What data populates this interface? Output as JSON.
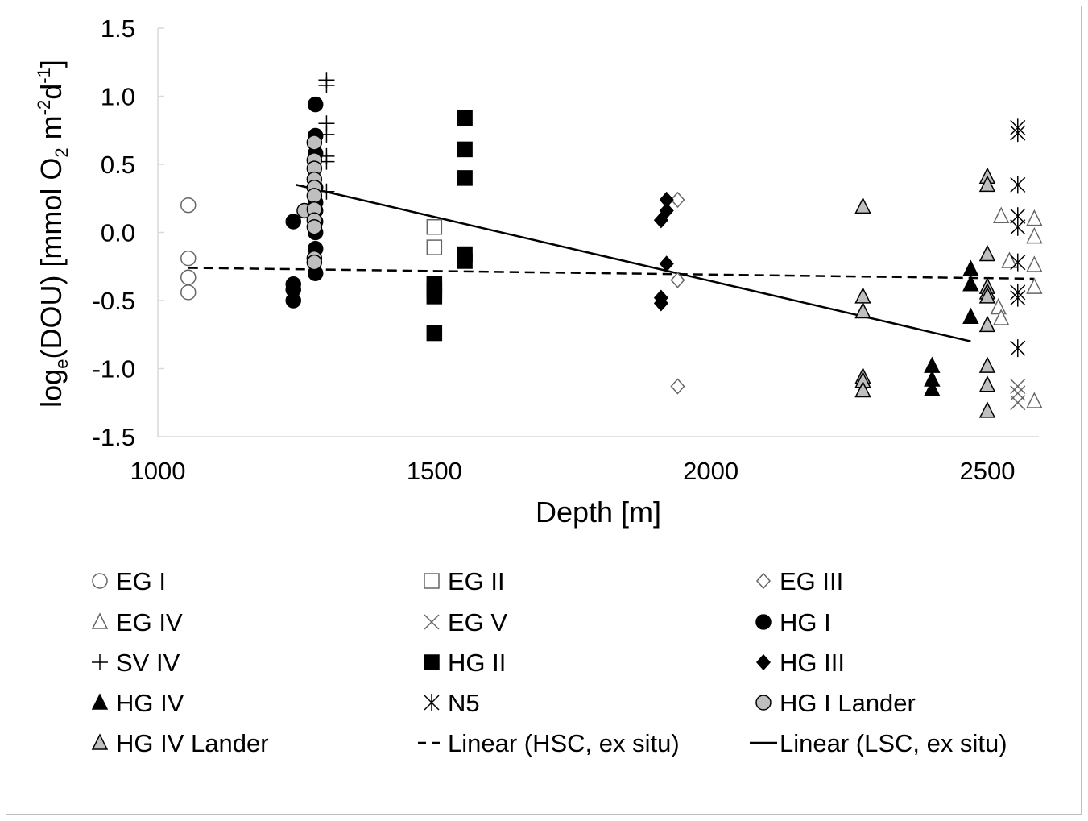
{
  "chart_data": {
    "type": "scatter",
    "title": "",
    "xlabel": "Depth [m]",
    "ylabel": {
      "prefix": "log",
      "sub1": "e",
      "mid": "(DOU) [mmol O",
      "sub2": "2",
      "mid2": " m",
      "sup1": "-2",
      "mid3": "d",
      "sup2": "-1",
      "suffix": "]"
    },
    "xlim": [
      1000,
      2600
    ],
    "ylim": [
      -1.5,
      1.5
    ],
    "xticks": [
      1000,
      1500,
      2000,
      2500
    ],
    "yticks": [
      1.5,
      1.0,
      0.5,
      0.0,
      -0.5,
      -1.0,
      -1.5
    ],
    "ytick_labels": [
      "1.5",
      "1.0",
      "0.5",
      "0.0",
      "-0.5",
      "-1.0",
      "-1.5"
    ],
    "grid": false,
    "legend_position": "bottom",
    "series": [
      {
        "name": "EG I",
        "marker": "circle",
        "fill": "#ffffff",
        "stroke": "#666666",
        "points": [
          [
            1055,
            0.2
          ],
          [
            1055,
            -0.19
          ],
          [
            1055,
            -0.33
          ],
          [
            1055,
            -0.44
          ]
        ]
      },
      {
        "name": "EG II",
        "marker": "square",
        "fill": "#ffffff",
        "stroke": "#666666",
        "points": [
          [
            1500,
            0.04
          ],
          [
            1500,
            -0.11
          ]
        ]
      },
      {
        "name": "EG III",
        "marker": "diamond",
        "fill": "#ffffff",
        "stroke": "#666666",
        "points": [
          [
            1940,
            0.24
          ],
          [
            1940,
            -0.35
          ],
          [
            1940,
            -1.13
          ]
        ]
      },
      {
        "name": "EG IV",
        "marker": "triangle",
        "fill": "#ffffff",
        "stroke": "#666666",
        "points": [
          [
            2525,
            0.12
          ],
          [
            2540,
            -0.21
          ],
          [
            2520,
            -0.55
          ],
          [
            2525,
            -0.63
          ],
          [
            2585,
            0.1
          ],
          [
            2585,
            -0.03
          ],
          [
            2585,
            -0.24
          ],
          [
            2585,
            -0.4
          ],
          [
            2585,
            -1.24
          ]
        ]
      },
      {
        "name": "EG V",
        "marker": "x",
        "fill": "none",
        "stroke": "#666666",
        "points": [
          [
            2555,
            -1.13
          ],
          [
            2555,
            -1.18
          ],
          [
            2555,
            -1.25
          ]
        ]
      },
      {
        "name": "HG I",
        "marker": "circle",
        "fill": "#000000",
        "stroke": "#000000",
        "points": [
          [
            1245,
            0.08
          ],
          [
            1245,
            -0.38
          ],
          [
            1245,
            -0.42
          ],
          [
            1245,
            -0.5
          ],
          [
            1285,
            0.94
          ],
          [
            1285,
            0.71
          ],
          [
            1285,
            0.58
          ],
          [
            1285,
            0.33
          ],
          [
            1285,
            0.22
          ],
          [
            1285,
            0.16
          ],
          [
            1285,
            0.08
          ],
          [
            1285,
            0.0
          ],
          [
            1285,
            -0.12
          ],
          [
            1285,
            -0.3
          ]
        ]
      },
      {
        "name": "SV IV",
        "marker": "plus",
        "fill": "none",
        "stroke": "#000000",
        "points": [
          [
            1305,
            1.12
          ],
          [
            1305,
            1.08
          ],
          [
            1305,
            0.8
          ],
          [
            1305,
            0.72
          ],
          [
            1305,
            0.56
          ],
          [
            1305,
            0.52
          ],
          [
            1305,
            0.3
          ]
        ]
      },
      {
        "name": "HG II",
        "marker": "square",
        "fill": "#000000",
        "stroke": "#000000",
        "points": [
          [
            1500,
            -0.38
          ],
          [
            1500,
            -0.42
          ],
          [
            1500,
            -0.47
          ],
          [
            1500,
            -0.74
          ],
          [
            1555,
            0.84
          ],
          [
            1555,
            0.61
          ],
          [
            1555,
            0.4
          ],
          [
            1555,
            -0.16
          ],
          [
            1555,
            -0.21
          ]
        ]
      },
      {
        "name": "HG III",
        "marker": "diamond",
        "fill": "#000000",
        "stroke": "#000000",
        "points": [
          [
            1920,
            0.24
          ],
          [
            1920,
            0.16
          ],
          [
            1910,
            0.09
          ],
          [
            1920,
            -0.23
          ],
          [
            1910,
            -0.48
          ],
          [
            1910,
            -0.52
          ]
        ]
      },
      {
        "name": "HG IV",
        "marker": "triangle",
        "fill": "#000000",
        "stroke": "#000000",
        "points": [
          [
            2400,
            -0.98
          ],
          [
            2400,
            -1.08
          ],
          [
            2400,
            -1.15
          ],
          [
            2470,
            -0.27
          ],
          [
            2470,
            -0.38
          ],
          [
            2470,
            -0.62
          ]
        ]
      },
      {
        "name": "N5",
        "marker": "asterisk",
        "fill": "none",
        "stroke": "#000000",
        "points": [
          [
            2555,
            0.77
          ],
          [
            2555,
            0.73
          ],
          [
            2555,
            0.35
          ],
          [
            2555,
            0.12
          ],
          [
            2555,
            0.04
          ],
          [
            2555,
            -0.22
          ],
          [
            2555,
            -0.44
          ],
          [
            2555,
            -0.48
          ],
          [
            2555,
            -0.85
          ]
        ]
      },
      {
        "name": "HG I Lander",
        "marker": "circle",
        "fill": "#bfbfbf",
        "stroke": "#000000",
        "points": [
          [
            1265,
            0.16
          ],
          [
            1283,
            0.66
          ],
          [
            1283,
            0.53
          ],
          [
            1283,
            0.47
          ],
          [
            1283,
            0.39
          ],
          [
            1283,
            0.33
          ],
          [
            1283,
            0.27
          ],
          [
            1283,
            0.17
          ],
          [
            1283,
            0.09
          ],
          [
            1283,
            0.04
          ],
          [
            1283,
            -0.19
          ],
          [
            1283,
            -0.22
          ]
        ]
      },
      {
        "name": "HG IV Lander",
        "marker": "triangle",
        "fill": "#bfbfbf",
        "stroke": "#000000",
        "points": [
          [
            2275,
            0.19
          ],
          [
            2275,
            -0.47
          ],
          [
            2275,
            -0.58
          ],
          [
            2275,
            -1.06
          ],
          [
            2275,
            -1.09
          ],
          [
            2275,
            -1.16
          ],
          [
            2500,
            0.41
          ],
          [
            2500,
            0.35
          ],
          [
            2500,
            -0.16
          ],
          [
            2500,
            -0.4
          ],
          [
            2500,
            -0.44
          ],
          [
            2500,
            -0.47
          ],
          [
            2500,
            -0.68
          ],
          [
            2500,
            -0.98
          ],
          [
            2500,
            -1.12
          ],
          [
            2500,
            -1.31
          ]
        ]
      }
    ],
    "trendlines": [
      {
        "name": "Linear (HSC, ex situ)",
        "style": "dashed",
        "x": [
          1055,
          2585
        ],
        "y": [
          -0.26,
          -0.34
        ]
      },
      {
        "name": "Linear (LSC, ex situ)",
        "style": "solid",
        "x": [
          1250,
          2470
        ],
        "y": [
          0.35,
          -0.8
        ]
      }
    ]
  }
}
